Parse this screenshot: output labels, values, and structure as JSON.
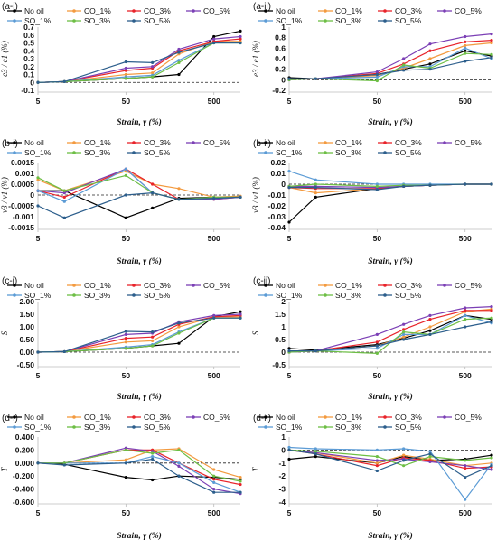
{
  "series_styles": [
    {
      "name": "No oil",
      "color": "#000000"
    },
    {
      "name": "CO_1%",
      "color": "#F39A3F"
    },
    {
      "name": "CO_3%",
      "color": "#E8232A"
    },
    {
      "name": "CO_5%",
      "color": "#7B3FB5"
    },
    {
      "name": "SO_1%",
      "color": "#5B9BD5"
    },
    {
      "name": "SO_3%",
      "color": "#6DBE45"
    },
    {
      "name": "SO_5%",
      "color": "#2C5E8C"
    }
  ],
  "chart_data": [
    {
      "id": "a-i",
      "panel_label": "(a-i)",
      "type": "line",
      "xlabel": "Strain, γ (%)",
      "ylabel": "e3 / e1 (%)",
      "xscale": "log",
      "xlim": [
        5,
        1000
      ],
      "xticks": [
        "5",
        "50",
        "500"
      ],
      "xtick_values": [
        5,
        50,
        500
      ],
      "ylim": [
        -0.1,
        0.7
      ],
      "yticks": [
        "-0.1",
        "0",
        "0.1",
        "0.2",
        "0.3",
        "0.4",
        "0.5",
        "0.6",
        "0.7"
      ],
      "ytick_values": [
        -0.1,
        0,
        0.1,
        0.2,
        0.3,
        0.4,
        0.5,
        0.6,
        0.7
      ],
      "zero_line": true,
      "x": [
        5,
        10,
        50,
        100,
        200,
        500,
        1000
      ],
      "series": [
        {
          "name": "No oil",
          "values": [
            0,
            0.01,
            0.05,
            0.07,
            0.1,
            0.58,
            0.65
          ]
        },
        {
          "name": "CO_1%",
          "values": [
            0,
            0.01,
            0.1,
            0.12,
            0.36,
            0.52,
            0.52
          ]
        },
        {
          "name": "CO_3%",
          "values": [
            0,
            0.01,
            0.15,
            0.18,
            0.4,
            0.52,
            0.55
          ]
        },
        {
          "name": "CO_5%",
          "values": [
            0,
            0.01,
            0.18,
            0.2,
            0.42,
            0.55,
            0.58
          ]
        },
        {
          "name": "SO_1%",
          "values": [
            0,
            0.01,
            0.07,
            0.09,
            0.28,
            0.5,
            0.5
          ]
        },
        {
          "name": "SO_3%",
          "values": [
            0,
            0.01,
            0.05,
            0.07,
            0.25,
            0.5,
            0.5
          ]
        },
        {
          "name": "SO_5%",
          "values": [
            0,
            0.01,
            0.26,
            0.25,
            0.38,
            0.5,
            0.5
          ]
        }
      ]
    },
    {
      "id": "a-ii",
      "panel_label": "(a-ii)",
      "type": "line",
      "xlabel": "Strain, γ (%)",
      "ylabel": "e3 / e1 (%)",
      "xscale": "log",
      "xlim": [
        5,
        1000
      ],
      "xticks": [
        "5",
        "50",
        "500"
      ],
      "xtick_values": [
        5,
        50,
        500
      ],
      "ylim": [
        -0.2,
        1.0
      ],
      "yticks": [
        "-0.2",
        "0",
        "0.2",
        "0.4",
        "0.6",
        "0.8",
        "1"
      ],
      "ytick_values": [
        -0.2,
        0,
        0.2,
        0.4,
        0.6,
        0.8,
        1.0
      ],
      "zero_line": true,
      "x": [
        5,
        10,
        50,
        100,
        200,
        500,
        1000
      ],
      "series": [
        {
          "name": "No oil",
          "values": [
            0.04,
            0.02,
            0.1,
            0.2,
            0.3,
            0.55,
            0.45
          ]
        },
        {
          "name": "CO_1%",
          "values": [
            0.0,
            0.02,
            0.08,
            0.22,
            0.4,
            0.65,
            0.7
          ]
        },
        {
          "name": "CO_3%",
          "values": [
            0.0,
            0.02,
            0.12,
            0.3,
            0.55,
            0.72,
            0.75
          ]
        },
        {
          "name": "CO_5%",
          "values": [
            0.0,
            0.02,
            0.15,
            0.4,
            0.68,
            0.82,
            0.87
          ]
        },
        {
          "name": "SO_1%",
          "values": [
            0.0,
            0.02,
            0.05,
            0.25,
            0.25,
            0.6,
            0.4
          ]
        },
        {
          "name": "SO_3%",
          "values": [
            0.0,
            0.02,
            -0.02,
            0.28,
            0.22,
            0.5,
            0.48
          ]
        },
        {
          "name": "SO_5%",
          "values": [
            0.02,
            0.02,
            0.1,
            0.18,
            0.2,
            0.35,
            0.42
          ]
        }
      ]
    },
    {
      "id": "b-i",
      "panel_label": "(b-i)",
      "type": "line",
      "xlabel": "Strain, γ (%)",
      "ylabel": "v3 / v1 (%)",
      "xscale": "log",
      "xlim": [
        5,
        1000
      ],
      "xticks": [
        "5",
        "50",
        "500"
      ],
      "xtick_values": [
        5,
        50,
        500
      ],
      "ylim": [
        -0.0015,
        0.0015
      ],
      "yticks": [
        "-0.0015",
        "-0.001",
        "-0.0005",
        "0",
        "0.0005",
        "0.001",
        "0.0015"
      ],
      "ytick_values": [
        -0.0015,
        -0.001,
        -0.0005,
        0,
        0.0005,
        0.001,
        0.0015
      ],
      "zero_line": true,
      "x": [
        5,
        10,
        50,
        100,
        200,
        500,
        1000
      ],
      "series": [
        {
          "name": "No oil",
          "values": [
            0.0002,
            0.0002,
            -0.00105,
            -0.0006,
            -0.00015,
            -0.0001,
            -0.0001
          ]
        },
        {
          "name": "CO_1%",
          "values": [
            0.0007,
            0.0002,
            0.0011,
            0.0005,
            0.0003,
            -0.0001,
            -5e-05
          ]
        },
        {
          "name": "CO_3%",
          "values": [
            0.0002,
            -0.0001,
            0.0012,
            0.0005,
            -0.0002,
            -0.0002,
            -0.0001
          ]
        },
        {
          "name": "CO_5%",
          "values": [
            0.0002,
            0.0001,
            0.0012,
            0.0001,
            -0.0002,
            -0.0002,
            -0.0001
          ]
        },
        {
          "name": "SO_1%",
          "values": [
            0.0002,
            -0.0003,
            0.0012,
            0.0001,
            -0.0002,
            -0.00015,
            -0.0001
          ]
        },
        {
          "name": "SO_3%",
          "values": [
            0.0008,
            0.0002,
            0.0009,
            0.0001,
            -0.0002,
            -0.0001,
            -0.0001
          ]
        },
        {
          "name": "SO_5%",
          "values": [
            -0.0005,
            -0.00105,
            0.0,
            0.0001,
            -0.0002,
            -0.00015,
            -0.0001
          ]
        }
      ]
    },
    {
      "id": "b-ii",
      "panel_label": "(b-ii)",
      "type": "line",
      "xlabel": "Strain, γ (%)",
      "ylabel": "v3 / v1 (%)",
      "xscale": "log",
      "xlim": [
        5,
        1000
      ],
      "xticks": [
        "5",
        "50",
        "500"
      ],
      "xtick_values": [
        5,
        50,
        500
      ],
      "ylim": [
        -0.04,
        0.02
      ],
      "yticks": [
        "-0.04",
        "-0.03",
        "-0.02",
        "-0.01",
        "0",
        "0.01",
        "0.02"
      ],
      "ytick_values": [
        -0.04,
        -0.03,
        -0.02,
        -0.01,
        0,
        0.01,
        0.02
      ],
      "zero_line": true,
      "x": [
        5,
        10,
        50,
        100,
        200,
        500,
        1000
      ],
      "series": [
        {
          "name": "No oil",
          "values": [
            -0.035,
            -0.012,
            -0.004,
            -0.002,
            -0.001,
            0.0,
            0.0
          ]
        },
        {
          "name": "CO_1%",
          "values": [
            -0.003,
            -0.008,
            -0.004,
            -0.002,
            -0.001,
            0.0,
            0.0
          ]
        },
        {
          "name": "CO_3%",
          "values": [
            -0.003,
            -0.004,
            -0.004,
            -0.002,
            -0.001,
            0.0,
            0.0
          ]
        },
        {
          "name": "CO_5%",
          "values": [
            -0.002,
            -0.002,
            -0.003,
            -0.002,
            -0.001,
            0.0,
            0.0
          ]
        },
        {
          "name": "SO_1%",
          "values": [
            0.012,
            0.004,
            0.0,
            0.0,
            0.0,
            0.0,
            0.0
          ]
        },
        {
          "name": "SO_3%",
          "values": [
            -0.002,
            0.0,
            -0.002,
            -0.001,
            -0.001,
            0.0,
            0.0
          ]
        },
        {
          "name": "SO_5%",
          "values": [
            -0.003,
            -0.003,
            -0.005,
            -0.002,
            -0.001,
            0.0,
            0.0
          ]
        }
      ]
    },
    {
      "id": "c-i",
      "panel_label": "(c-i)",
      "type": "line",
      "xlabel": "Strain, γ (%)",
      "ylabel": "S",
      "xscale": "log",
      "xlim": [
        5,
        1000
      ],
      "xticks": [
        "5",
        "50",
        "500"
      ],
      "xtick_values": [
        5,
        50,
        500
      ],
      "ylim": [
        -0.5,
        2.0
      ],
      "yticks": [
        "-0.50",
        "0.00",
        "0.50",
        "1.00",
        "1.50",
        "2.00"
      ],
      "ytick_values": [
        -0.5,
        0,
        0.5,
        1.0,
        1.5,
        2.0
      ],
      "zero_line": true,
      "x": [
        5,
        10,
        50,
        100,
        200,
        500,
        1000
      ],
      "series": [
        {
          "name": "No oil",
          "values": [
            0,
            0.02,
            0.15,
            0.25,
            0.35,
            1.4,
            1.6
          ]
        },
        {
          "name": "CO_1%",
          "values": [
            0,
            0.02,
            0.4,
            0.45,
            1.0,
            1.4,
            1.4
          ]
        },
        {
          "name": "CO_3%",
          "values": [
            0,
            0.02,
            0.55,
            0.6,
            1.1,
            1.4,
            1.45
          ]
        },
        {
          "name": "CO_5%",
          "values": [
            0,
            0.02,
            0.7,
            0.75,
            1.2,
            1.45,
            1.5
          ]
        },
        {
          "name": "SO_1%",
          "values": [
            0,
            0.02,
            0.2,
            0.3,
            0.8,
            1.35,
            1.35
          ]
        },
        {
          "name": "SO_3%",
          "values": [
            0,
            0.02,
            0.15,
            0.25,
            0.75,
            1.35,
            1.35
          ]
        },
        {
          "name": "SO_5%",
          "values": [
            0,
            0.02,
            0.82,
            0.8,
            1.15,
            1.35,
            1.35
          ]
        }
      ]
    },
    {
      "id": "c-ii",
      "panel_label": "(c-ii)",
      "type": "line",
      "xlabel": "Strain, γ (%)",
      "ylabel": "S",
      "xscale": "log",
      "xlim": [
        5,
        1000
      ],
      "xticks": [
        "5",
        "50",
        "500"
      ],
      "xtick_values": [
        5,
        50,
        500
      ],
      "ylim": [
        -0.5,
        2.0
      ],
      "yticks": [
        "-0.5",
        "0",
        "0.5",
        "1",
        "1.5",
        "2"
      ],
      "ytick_values": [
        -0.5,
        0,
        0.5,
        1.0,
        1.5,
        2.0
      ],
      "zero_line": true,
      "x": [
        5,
        10,
        50,
        100,
        200,
        500,
        1000
      ],
      "series": [
        {
          "name": "No oil",
          "values": [
            0.15,
            0.08,
            0.3,
            0.55,
            0.85,
            1.45,
            1.3
          ]
        },
        {
          "name": "CO_1%",
          "values": [
            0.0,
            0.05,
            0.25,
            0.6,
            1.0,
            1.6,
            1.7
          ]
        },
        {
          "name": "CO_3%",
          "values": [
            0.0,
            0.05,
            0.4,
            0.9,
            1.3,
            1.65,
            1.65
          ]
        },
        {
          "name": "CO_5%",
          "values": [
            0.0,
            0.05,
            0.7,
            1.1,
            1.45,
            1.75,
            1.8
          ]
        },
        {
          "name": "SO_1%",
          "values": [
            0.0,
            0.05,
            0.15,
            0.7,
            0.7,
            1.45,
            1.15
          ]
        },
        {
          "name": "SO_3%",
          "values": [
            0.0,
            0.05,
            -0.05,
            0.8,
            0.7,
            1.3,
            1.35
          ]
        },
        {
          "name": "SO_5%",
          "values": [
            0.05,
            0.05,
            0.25,
            0.5,
            0.7,
            1.0,
            1.2
          ]
        }
      ]
    },
    {
      "id": "d-i",
      "panel_label": "(d-i)",
      "type": "line",
      "xlabel": "Strain, γ (%)",
      "ylabel": "T",
      "xscale": "log",
      "xlim": [
        5,
        1000
      ],
      "xticks": [
        "5",
        "50",
        "500"
      ],
      "xtick_values": [
        5,
        50,
        500
      ],
      "ylim": [
        -0.6,
        0.4
      ],
      "yticks": [
        "-0.600",
        "-0.400",
        "-0.200",
        "0.000",
        "0.200",
        "0.400"
      ],
      "ytick_values": [
        -0.6,
        -0.4,
        -0.2,
        0,
        0.2,
        0.4
      ],
      "zero_line": true,
      "x": [
        5,
        10,
        50,
        100,
        200,
        500,
        1000
      ],
      "series": [
        {
          "name": "No oil",
          "values": [
            0.0,
            -0.02,
            -0.22,
            -0.26,
            -0.2,
            -0.22,
            -0.25
          ]
        },
        {
          "name": "CO_1%",
          "values": [
            0.0,
            0.0,
            0.05,
            0.2,
            0.22,
            -0.1,
            -0.22
          ]
        },
        {
          "name": "CO_3%",
          "values": [
            0.0,
            0.0,
            0.2,
            0.2,
            0.0,
            -0.25,
            -0.33
          ]
        },
        {
          "name": "CO_5%",
          "values": [
            0.0,
            0.0,
            0.23,
            0.18,
            -0.05,
            -0.4,
            -0.47
          ]
        },
        {
          "name": "SO_1%",
          "values": [
            0.0,
            0.0,
            0.0,
            0.1,
            0.0,
            -0.3,
            -0.45
          ]
        },
        {
          "name": "SO_3%",
          "values": [
            0.0,
            0.0,
            0.2,
            0.15,
            0.2,
            -0.2,
            -0.28
          ]
        },
        {
          "name": "SO_5%",
          "values": [
            0.0,
            -0.03,
            0.0,
            0.06,
            -0.2,
            -0.45,
            -0.45
          ]
        }
      ]
    },
    {
      "id": "d-ii",
      "panel_label": "(d-ii)",
      "type": "line",
      "xlabel": "Strain, γ (%)",
      "ylabel": "T",
      "xscale": "log",
      "xlim": [
        5,
        1000
      ],
      "xticks": [
        "5",
        "50",
        "500"
      ],
      "xtick_values": [
        5,
        50,
        500
      ],
      "ylim": [
        -4,
        1
      ],
      "yticks": [
        "-4",
        "-3",
        "-2",
        "-1",
        "0",
        "1"
      ],
      "ytick_values": [
        -4,
        -3,
        -2,
        -1,
        0,
        1
      ],
      "zero_line": true,
      "x": [
        5,
        10,
        50,
        100,
        200,
        500,
        1000
      ],
      "series": [
        {
          "name": "No oil",
          "values": [
            -0.7,
            -0.5,
            -1.0,
            -0.5,
            -0.8,
            -0.7,
            -0.4
          ]
        },
        {
          "name": "CO_1%",
          "values": [
            0.0,
            -0.2,
            -1.0,
            -0.4,
            -0.7,
            -1.2,
            -1.0
          ]
        },
        {
          "name": "CO_3%",
          "values": [
            0.0,
            -0.3,
            -1.2,
            -0.6,
            -0.8,
            -1.4,
            -1.3
          ]
        },
        {
          "name": "CO_5%",
          "values": [
            0.0,
            -0.2,
            -0.8,
            -0.7,
            -0.9,
            -1.2,
            -1.5
          ]
        },
        {
          "name": "SO_1%",
          "values": [
            0.2,
            0.1,
            0.0,
            0.1,
            -0.1,
            -3.8,
            -1.1
          ]
        },
        {
          "name": "SO_3%",
          "values": [
            0.0,
            -0.1,
            -0.5,
            -1.2,
            -0.5,
            -0.8,
            -0.6
          ]
        },
        {
          "name": "SO_5%",
          "values": [
            0.0,
            -0.3,
            -1.6,
            -0.8,
            -0.3,
            -2.1,
            -1.2
          ]
        }
      ]
    }
  ]
}
